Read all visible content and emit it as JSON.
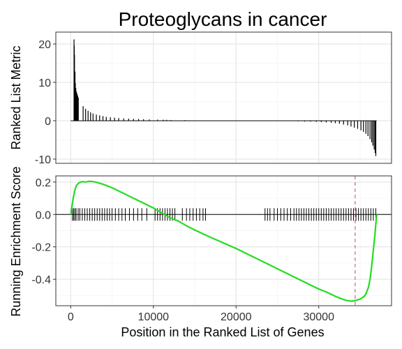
{
  "chart_data": [
    {
      "type": "bar",
      "title": "Proteoglycans in cancer",
      "ylabel": "Ranked List Metric",
      "xlim": [
        -1800,
        38800
      ],
      "ylim": [
        -11.1,
        23.1
      ],
      "yticks": [
        -10,
        0,
        10,
        20
      ],
      "grid": true,
      "bars": [
        {
          "x": 400,
          "y": 21.2
        },
        {
          "x": 430,
          "y": 19.6
        },
        {
          "x": 460,
          "y": 17.2
        },
        {
          "x": 520,
          "y": 12.8
        },
        {
          "x": 560,
          "y": 9.8
        },
        {
          "x": 620,
          "y": 8.5
        },
        {
          "x": 700,
          "y": 7.6
        },
        {
          "x": 780,
          "y": 7.0
        },
        {
          "x": 850,
          "y": 6.5
        },
        {
          "x": 920,
          "y": 6.0
        },
        {
          "x": 1500,
          "y": 3.8
        },
        {
          "x": 1800,
          "y": 3.1
        },
        {
          "x": 2100,
          "y": 2.6
        },
        {
          "x": 2400,
          "y": 2.2
        },
        {
          "x": 2700,
          "y": 1.9
        },
        {
          "x": 3100,
          "y": 1.6
        },
        {
          "x": 3500,
          "y": 1.4
        },
        {
          "x": 3900,
          "y": 1.2
        },
        {
          "x": 4300,
          "y": 1.0
        },
        {
          "x": 4800,
          "y": 0.9
        },
        {
          "x": 5300,
          "y": 0.8
        },
        {
          "x": 5800,
          "y": 0.7
        },
        {
          "x": 6400,
          "y": 0.6
        },
        {
          "x": 7000,
          "y": 0.55
        },
        {
          "x": 7600,
          "y": 0.5
        },
        {
          "x": 8200,
          "y": 0.45
        },
        {
          "x": 8800,
          "y": 0.4
        },
        {
          "x": 9500,
          "y": 0.35
        },
        {
          "x": 10500,
          "y": 0.3
        },
        {
          "x": 11200,
          "y": 0.28
        },
        {
          "x": 11600,
          "y": 0.25
        },
        {
          "x": 12100,
          "y": 0.2
        },
        {
          "x": 13800,
          "y": 0.15
        },
        {
          "x": 26700,
          "y": -0.1
        },
        {
          "x": 27500,
          "y": -0.15
        },
        {
          "x": 28300,
          "y": -0.2
        },
        {
          "x": 29000,
          "y": -0.25
        },
        {
          "x": 29700,
          "y": -0.3
        },
        {
          "x": 30300,
          "y": -0.35
        },
        {
          "x": 30900,
          "y": -0.45
        },
        {
          "x": 31500,
          "y": -0.55
        },
        {
          "x": 32000,
          "y": -0.65
        },
        {
          "x": 32500,
          "y": -0.8
        },
        {
          "x": 33000,
          "y": -1.0
        },
        {
          "x": 33500,
          "y": -1.2
        },
        {
          "x": 33900,
          "y": -1.5
        },
        {
          "x": 34300,
          "y": -1.8
        },
        {
          "x": 34700,
          "y": -2.1
        },
        {
          "x": 35100,
          "y": -2.5
        },
        {
          "x": 35400,
          "y": -2.9
        },
        {
          "x": 35700,
          "y": -3.4
        },
        {
          "x": 35950,
          "y": -4.0
        },
        {
          "x": 36200,
          "y": -4.8
        },
        {
          "x": 36400,
          "y": -5.6
        },
        {
          "x": 36550,
          "y": -6.5
        },
        {
          "x": 36700,
          "y": -7.5
        },
        {
          "x": 36820,
          "y": -8.4
        },
        {
          "x": 36900,
          "y": -9.2
        }
      ]
    },
    {
      "type": "line",
      "ylabel": "Running Enrichment Score",
      "xlabel": "Position in the Ranked List of Genes",
      "xlim": [
        -1800,
        38800
      ],
      "ylim": [
        -0.563,
        0.238
      ],
      "xticks": [
        0,
        10000,
        20000,
        30000
      ],
      "yticks": [
        -0.4,
        -0.2,
        0.0,
        0.2
      ],
      "ytick_labels": [
        "-0.4",
        "-0.2",
        "0.0",
        "0.2"
      ],
      "grid": true,
      "line_color": "#22dd22",
      "max_deviation_x": 34400,
      "max_deviation_color": "#cc6677",
      "es_curve": {
        "x": [
          0,
          150,
          300,
          500,
          700,
          1000,
          1400,
          1800,
          2300,
          3000,
          4000,
          5000,
          6000,
          7000,
          8000,
          9000,
          10000,
          11000,
          12000,
          13000,
          14000,
          15000,
          16000,
          18000,
          20000,
          22000,
          24000,
          26000,
          28000,
          30000,
          31000,
          32000,
          33000,
          33500,
          34000,
          34500,
          35000,
          35500,
          35700,
          36000,
          36200,
          36400,
          36600,
          36800,
          37000
        ],
        "y": [
          0.0,
          0.05,
          0.1,
          0.15,
          0.18,
          0.195,
          0.203,
          0.2,
          0.205,
          0.2,
          0.185,
          0.165,
          0.14,
          0.115,
          0.09,
          0.065,
          0.04,
          0.01,
          -0.02,
          -0.04,
          -0.07,
          -0.095,
          -0.12,
          -0.165,
          -0.21,
          -0.26,
          -0.31,
          -0.36,
          -0.41,
          -0.46,
          -0.48,
          -0.505,
          -0.525,
          -0.532,
          -0.535,
          -0.53,
          -0.522,
          -0.505,
          -0.49,
          -0.45,
          -0.4,
          -0.32,
          -0.22,
          -0.12,
          0.0
        ]
      },
      "gene_hits_x": [
        200,
        350,
        500,
        650,
        900,
        1100,
        1400,
        1700,
        2000,
        2300,
        2600,
        2900,
        3200,
        3500,
        3800,
        4100,
        4400,
        4700,
        5000,
        5400,
        5800,
        6200,
        6600,
        7100,
        7600,
        8100,
        8600,
        9200,
        10200,
        10500,
        10800,
        11100,
        11400,
        11700,
        12000,
        12300,
        12600,
        13500,
        14000,
        14400,
        14800,
        15200,
        15600,
        16000,
        16300,
        23500,
        23800,
        24100,
        24600,
        25000,
        25400,
        25800,
        26200,
        26600,
        27000,
        27300,
        27600,
        27900,
        28200,
        28500,
        28800,
        29100,
        29400,
        29700,
        30000,
        30300,
        30600,
        30900,
        31200,
        31500,
        31800,
        32100,
        32400,
        32700,
        33000,
        33300,
        33600,
        33900,
        34200,
        34500,
        34800,
        35100,
        35400,
        35700,
        36000,
        36300,
        36600,
        36900
      ]
    }
  ]
}
